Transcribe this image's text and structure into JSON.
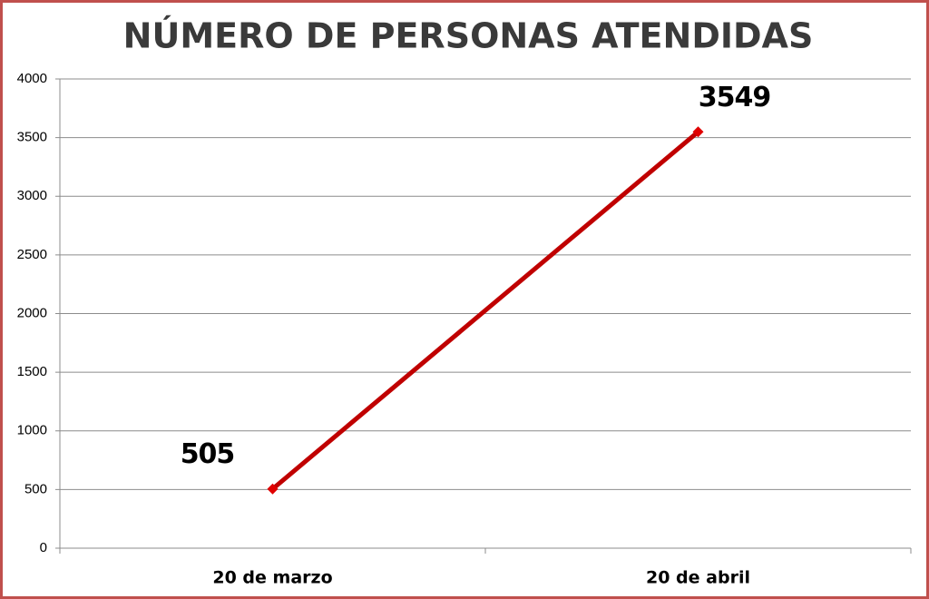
{
  "chart_data": {
    "type": "line",
    "title": "NÚMERO DE PERSONAS ATENDIDAS",
    "categories": [
      "20 de marzo",
      "20 de abril"
    ],
    "values": [
      505,
      3549
    ],
    "color": "#c00000",
    "ylim": [
      0,
      4000
    ],
    "yticks": [
      0,
      500,
      1000,
      1500,
      2000,
      2500,
      3000,
      3500,
      4000
    ],
    "grid": true
  }
}
